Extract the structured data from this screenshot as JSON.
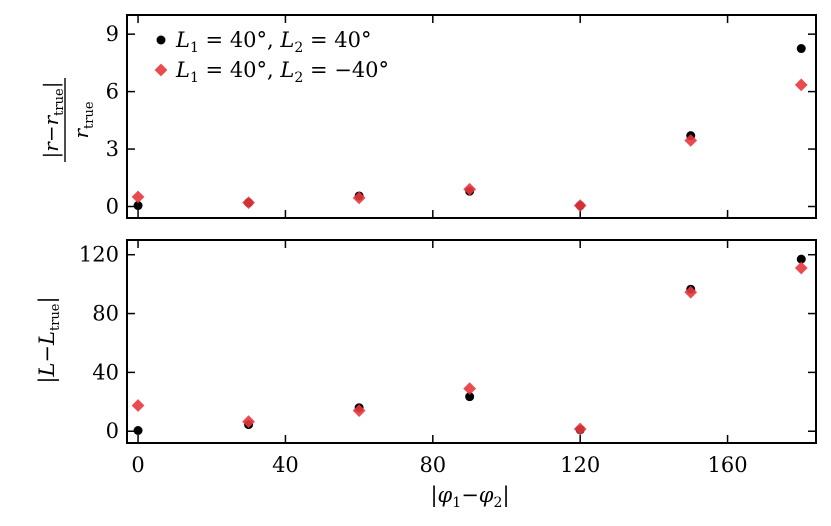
{
  "chart_data": [
    {
      "type": "scatter",
      "title": "",
      "ylabel_parts": {
        "bar_left": "|",
        "r": "r",
        "minus": "−",
        "r_true": "r",
        "true_sub": "true",
        "bar_right": "|",
        "den_r": "r",
        "den_sub": "true"
      },
      "xlim": [
        -3,
        184
      ],
      "ylim": [
        -0.6,
        10
      ],
      "yticks": [
        0,
        3,
        6,
        9
      ],
      "ytick_labels": [
        "0",
        "3",
        "6",
        "9"
      ],
      "legend_position": "top-left",
      "legend": [
        {
          "marker": "circle",
          "color": "#000000",
          "parts": [
            "L",
            "1",
            " = 40°,  ",
            "L",
            "2",
            " = 40°"
          ]
        },
        {
          "marker": "diamond",
          "color": "#e8373d",
          "parts": [
            "L",
            "1",
            " = 40°,  ",
            "L",
            "2",
            " = −40°"
          ]
        }
      ],
      "series": [
        {
          "marker": "circle",
          "color": "#000000",
          "x": [
            0,
            30,
            60,
            90,
            120,
            150,
            180
          ],
          "y": [
            0.05,
            0.2,
            0.55,
            0.8,
            0.05,
            3.7,
            8.25
          ]
        },
        {
          "marker": "diamond",
          "color": "#e8373d",
          "x": [
            0,
            30,
            60,
            90,
            120,
            150,
            180
          ],
          "y": [
            0.5,
            0.2,
            0.45,
            0.9,
            0.05,
            3.45,
            6.35
          ]
        }
      ]
    },
    {
      "type": "scatter",
      "title": "",
      "ylabel_parts": {
        "bar_left": "|",
        "L": "L",
        "minus": "−",
        "L_true": "L",
        "true_sub": "true",
        "bar_right": "|"
      },
      "xlabel_parts": {
        "bar_left": "|",
        "phi1": "φ",
        "sub1": "1",
        "minus": "−",
        "phi2": "φ",
        "sub2": "2",
        "bar_right": "|"
      },
      "xlim": [
        -3,
        184
      ],
      "ylim": [
        -8,
        130
      ],
      "xticks": [
        0,
        40,
        80,
        120,
        160
      ],
      "xtick_labels": [
        "0",
        "40",
        "80",
        "120",
        "160"
      ],
      "yticks": [
        0,
        40,
        80,
        120
      ],
      "ytick_labels": [
        "0",
        "40",
        "80",
        "120"
      ],
      "series": [
        {
          "marker": "circle",
          "color": "#000000",
          "x": [
            0,
            30,
            60,
            90,
            120,
            150,
            180
          ],
          "y": [
            0.5,
            4.5,
            16,
            23.5,
            1,
            96.5,
            117
          ]
        },
        {
          "marker": "diamond",
          "color": "#e8373d",
          "x": [
            0,
            30,
            60,
            90,
            120,
            150,
            180
          ],
          "y": [
            17.5,
            6.5,
            14,
            29,
            1.5,
            94.5,
            111
          ]
        }
      ]
    }
  ]
}
